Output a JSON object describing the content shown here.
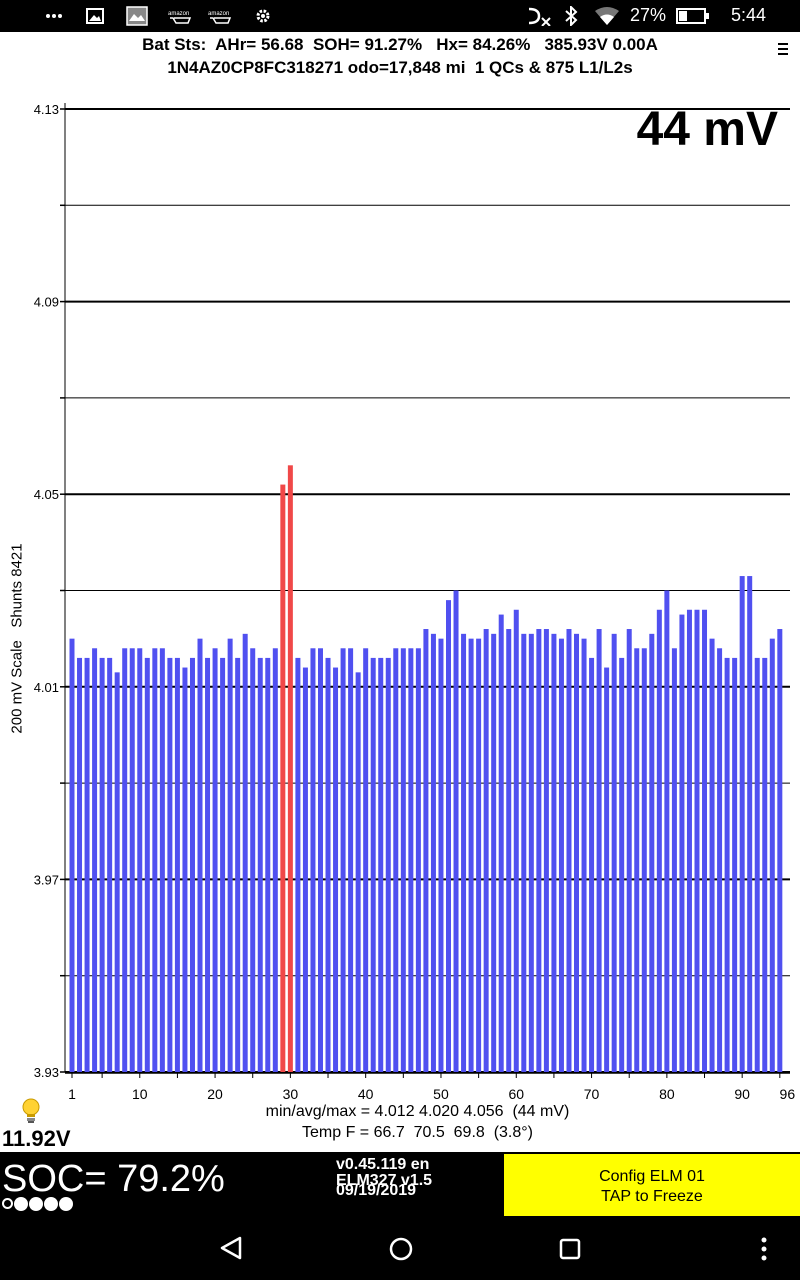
{
  "status_bar": {
    "battery_percent": "27%",
    "time": "5:44",
    "left_icons": [
      "more-dots-icon",
      "gallery-icon",
      "photo-app-icon",
      "amazon-cart-icon",
      "amazon-cart-icon",
      "settings-gear-icon"
    ],
    "right_icons": [
      "data-off-icon",
      "bluetooth-icon",
      "wifi-icon",
      "battery-icon"
    ]
  },
  "header": {
    "line1": "Bat Sts:  AHr= 56.68  SOH= 91.27%   Hx= 84.26%   385.93V 0.00A",
    "line2": "1N4AZ0CP8FC318271 odo=17,848 mi  1 QCs & 875 L1/L2s"
  },
  "chart": {
    "spread_label": "44 mV",
    "y_title": "200 mV Scale   Shunts 8421",
    "stats_line1": "min/avg/max = 4.012 4.020 4.056  (44 mV)",
    "stats_line2": "Temp F = 66.7  70.5  69.8  (3.8°)"
  },
  "chart_data": {
    "type": "bar",
    "ylim": [
      3.93,
      4.13
    ],
    "ytick_labels": [
      "4.13",
      "4.09",
      "4.05",
      "4.01",
      "3.97",
      "3.93"
    ],
    "xtick_labels": [
      "1",
      "10",
      "20",
      "30",
      "40",
      "50",
      "60",
      "70",
      "80",
      "90",
      "96"
    ],
    "xtick_positions": [
      1,
      10,
      20,
      30,
      40,
      50,
      60,
      70,
      80,
      90,
      96
    ],
    "colors": {
      "normal": "#5050f0",
      "shunted": "#f04848"
    },
    "shunted_cells": [
      29,
      30
    ],
    "values": [
      4.02,
      4.016,
      4.016,
      4.018,
      4.016,
      4.016,
      4.013,
      4.018,
      4.018,
      4.018,
      4.016,
      4.018,
      4.018,
      4.016,
      4.016,
      4.014,
      4.016,
      4.02,
      4.016,
      4.018,
      4.016,
      4.02,
      4.016,
      4.021,
      4.018,
      4.016,
      4.016,
      4.018,
      4.052,
      4.056,
      4.016,
      4.014,
      4.018,
      4.018,
      4.016,
      4.014,
      4.018,
      4.018,
      4.013,
      4.018,
      4.016,
      4.016,
      4.016,
      4.018,
      4.018,
      4.018,
      4.018,
      4.022,
      4.021,
      4.02,
      4.028,
      4.03,
      4.021,
      4.02,
      4.02,
      4.022,
      4.021,
      4.025,
      4.022,
      4.026,
      4.021,
      4.021,
      4.022,
      4.022,
      4.021,
      4.02,
      4.022,
      4.021,
      4.02,
      4.016,
      4.022,
      4.014,
      4.021,
      4.016,
      4.022,
      4.018,
      4.018,
      4.021,
      4.026,
      4.03,
      4.018,
      4.025,
      4.026,
      4.026,
      4.026,
      4.02,
      4.018,
      4.016,
      4.016,
      4.033,
      4.033,
      4.016,
      4.016,
      4.02,
      4.022
    ]
  },
  "aux": {
    "voltage": "11.92V"
  },
  "bottom": {
    "soc": "SOC= 79.2%",
    "soc_dots": [
      false,
      true,
      true,
      true,
      true
    ],
    "version": "v0.45.119 en",
    "adapter": "ELM327 v1.5",
    "date": "09/19/2019",
    "config_line1": "Config ELM  01",
    "config_line2": "TAP to Freeze"
  }
}
